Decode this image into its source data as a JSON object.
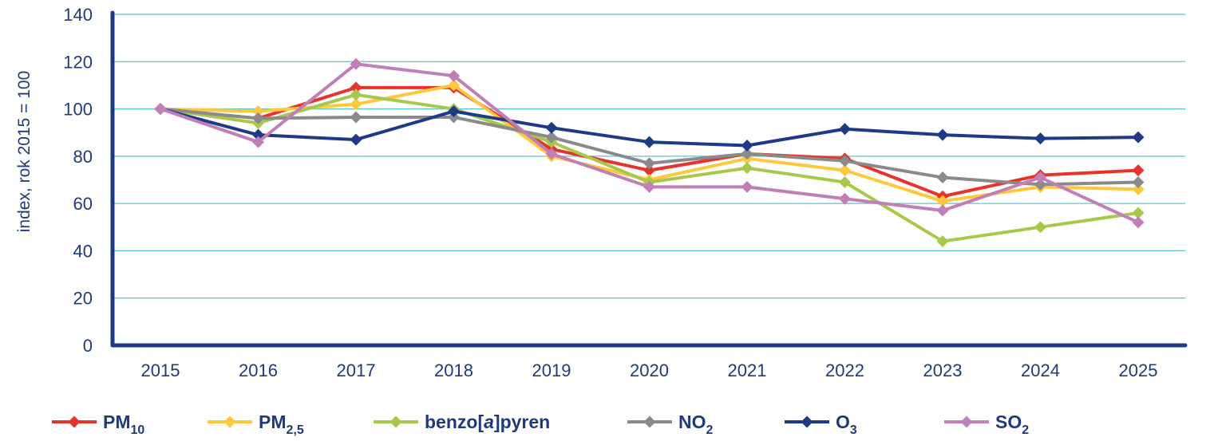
{
  "chart_data": {
    "type": "line",
    "ylabel": "index, rok 2015 = 100",
    "ylim": [
      0,
      140
    ],
    "yticks": [
      "0",
      "20",
      "40",
      "60",
      "80",
      "100",
      "120",
      "140"
    ],
    "categories": [
      "2015",
      "2016",
      "2017",
      "2018",
      "2019",
      "2020",
      "2021",
      "2022",
      "2023",
      "2024",
      "2025"
    ],
    "grid": true,
    "legend_position": "bottom",
    "series": [
      {
        "key": "pm10",
        "label_main": "PM",
        "label_sub": "10",
        "color": "#e8332b",
        "values": [
          100,
          96,
          109,
          109,
          83,
          74,
          81,
          79,
          63,
          72,
          74
        ]
      },
      {
        "key": "pm25",
        "label_main": "PM",
        "label_sub": "2,5",
        "color": "#fdc93a",
        "values": [
          100,
          99,
          102,
          110,
          80,
          70,
          79,
          74,
          61,
          67,
          66
        ]
      },
      {
        "key": "bap",
        "label_parts": [
          "benzo[",
          "a",
          "]pyren"
        ],
        "color": "#a8c84a",
        "values": [
          100,
          94,
          106,
          100,
          86,
          69,
          75,
          69,
          44,
          50,
          56
        ]
      },
      {
        "key": "no2",
        "label_main": "NO",
        "label_sub": "2",
        "color": "#8a8a8a",
        "values": [
          100,
          96,
          96.5,
          96.5,
          88,
          77,
          81,
          78,
          71,
          68,
          69
        ]
      },
      {
        "key": "o3",
        "label_main": "O",
        "label_sub": "3",
        "color": "#1c3a85",
        "values": [
          100,
          89,
          87,
          99,
          92,
          86,
          84.5,
          91.5,
          89,
          87.5,
          88
        ]
      },
      {
        "key": "so2",
        "label_main": "SO",
        "label_sub": "2",
        "color": "#c17fb8",
        "values": [
          100,
          86,
          119,
          114,
          81,
          67,
          67,
          62,
          57,
          71,
          52
        ]
      }
    ]
  }
}
